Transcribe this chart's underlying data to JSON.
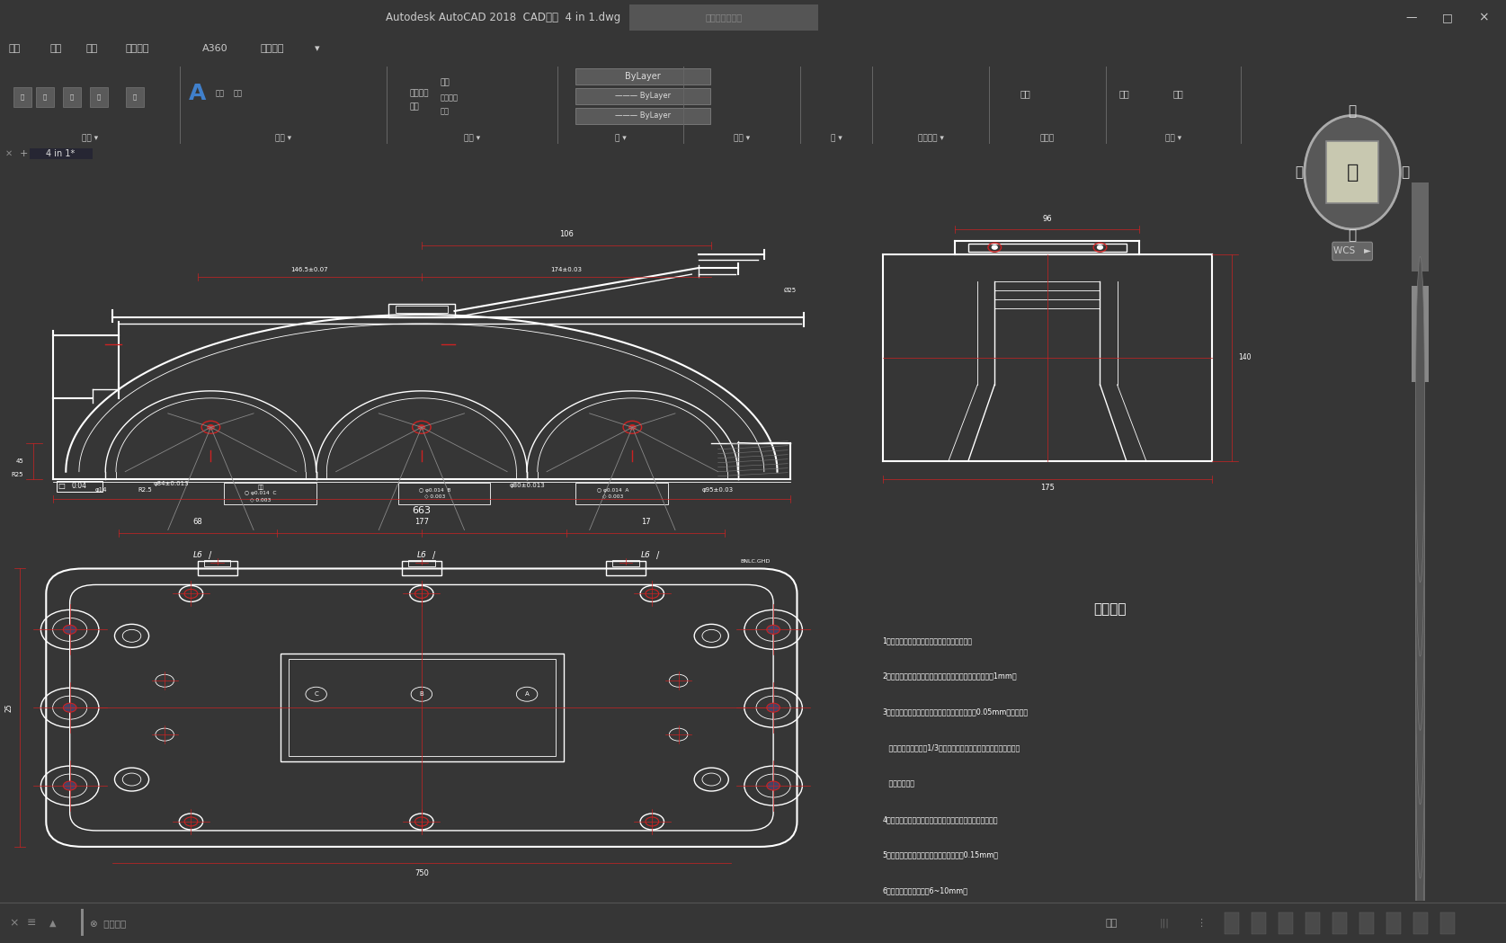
{
  "title_bar_text": "Autodesk AutoCAD 2018  CAD图纸  4 in 1.dwg",
  "title_bar_bg": "#363636",
  "menu_bar_bg": "#404040",
  "ribbon_bg": "#4d4d4d",
  "tab_bar_bg": "#3a3a3a",
  "canvas_bg": "#262633",
  "scrollbar_bg": "#4a4a4a",
  "status_bar_bg": "#333333",
  "col": "#ffffff",
  "red": "#cc2222",
  "dim_red": "#cc3333",
  "compass_circle_bg": "#606060",
  "compass_center_bg": "#c8c8b0",
  "tech_req_title": "技术要求",
  "tech_req_lines": [
    "1、铸铁铸造后应进行清砂，并进行时效处理。",
    "2、铸量和铸造合格后，坏模应平整，超差値每处均不大于1mm。",
    "3、应对钒设安装面和端面，划分面的综合値，用0.05mm实量入深度",
    "   不大于切分面宽度的1/3，用涂色法检查被触面你这词群平方量不少",
    "   于一个段头。",
    "4、铸量和铸量合格后，先打上安装销，端量后再进行锇孔。",
    "5、轴承孔中心载与划分面不整合度应小于0.15mm。",
    "6、筱钉的钉栓圆角半径6~10mm。"
  ],
  "window_controls": [
    "—",
    "□",
    "×"
  ],
  "menu_items": [
    "文件",
    "编辑",
    "视图",
    "附加模块",
    "A360",
    "精选应用"
  ],
  "ribbon_groups": [
    "修改",
    "注释",
    "图层",
    "块",
    "特性",
    "组",
    "实用工具",
    "剪切板",
    "视图"
  ],
  "tab_label": "4 in 1*"
}
